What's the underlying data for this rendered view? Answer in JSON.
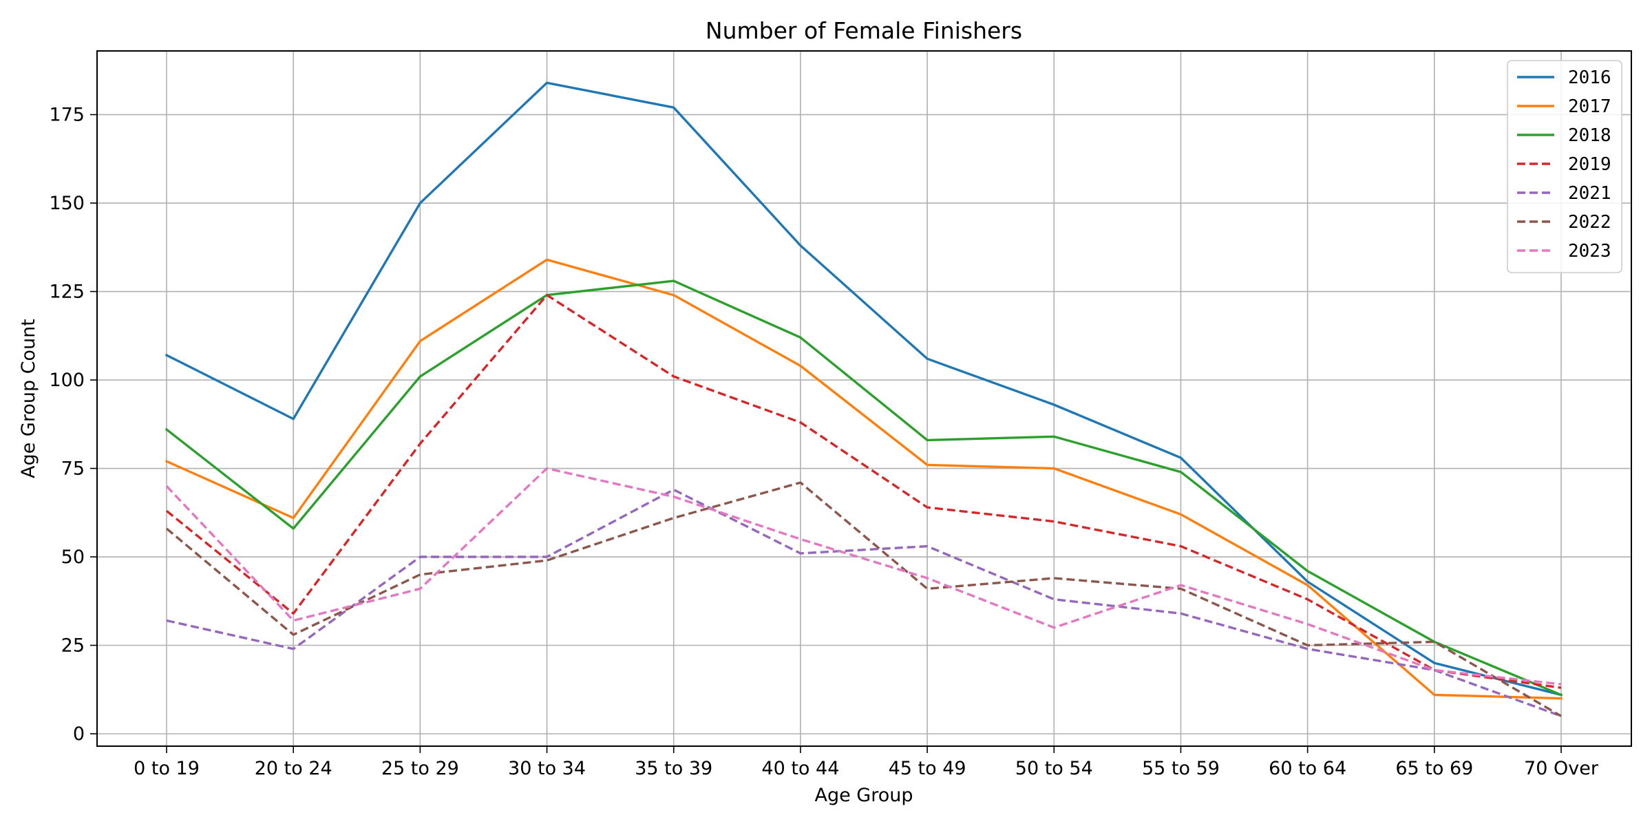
{
  "chart_data": {
    "type": "line",
    "title": "Number of Female Finishers",
    "xlabel": "Age Group",
    "ylabel": "Age Group Count",
    "categories": [
      "0 to 19",
      "20 to 24",
      "25 to 29",
      "30 to 34",
      "35 to 39",
      "40 to 44",
      "45 to 49",
      "50 to 54",
      "55 to 59",
      "60 to 64",
      "65 to 69",
      "70 Over"
    ],
    "ylim": [
      -3.5,
      193
    ],
    "yticks": [
      0,
      25,
      50,
      75,
      100,
      125,
      150,
      175
    ],
    "grid": true,
    "legend_position": "top-right",
    "series": [
      {
        "name": "2016",
        "color": "#1f77b4",
        "dashed": false,
        "values": [
          107,
          89,
          150,
          184,
          177,
          138,
          106,
          93,
          78,
          43,
          20,
          11
        ]
      },
      {
        "name": "2017",
        "color": "#ff7f0e",
        "dashed": false,
        "values": [
          77,
          61,
          111,
          134,
          124,
          104,
          76,
          75,
          62,
          42,
          11,
          10
        ]
      },
      {
        "name": "2018",
        "color": "#2ca02c",
        "dashed": false,
        "values": [
          86,
          58,
          101,
          124,
          128,
          112,
          83,
          84,
          74,
          46,
          26,
          11
        ]
      },
      {
        "name": "2019",
        "color": "#d62728",
        "dashed": true,
        "values": [
          63,
          34,
          82,
          124,
          101,
          88,
          64,
          60,
          53,
          38,
          18,
          13
        ]
      },
      {
        "name": "2021",
        "color": "#9467bd",
        "dashed": true,
        "values": [
          32,
          24,
          50,
          50,
          69,
          51,
          53,
          38,
          34,
          24,
          18,
          5
        ]
      },
      {
        "name": "2022",
        "color": "#8c564b",
        "dashed": true,
        "values": [
          58,
          28,
          45,
          49,
          61,
          71,
          41,
          44,
          41,
          25,
          26,
          5
        ]
      },
      {
        "name": "2023",
        "color": "#e377c2",
        "dashed": true,
        "values": [
          70,
          32,
          41,
          75,
          67,
          55,
          44,
          30,
          42,
          31,
          18,
          14
        ]
      }
    ]
  }
}
